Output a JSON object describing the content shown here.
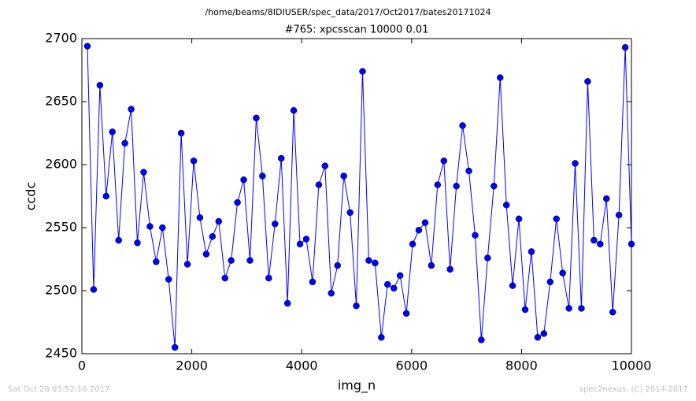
{
  "chart_data": {
    "type": "line",
    "suptitle": "/home/beams/8IDIUSER/spec_data/2017/Oct2017/bates20171024",
    "title": "#765: xpcsscan 10000 0.01",
    "xlabel": "img_n",
    "ylabel": "ccdc",
    "footer_left": "Sat Oct 28 03:52:16 2017",
    "footer_right": "spec2nexus, (C) 2014-2017",
    "xlim": [
      0,
      10000
    ],
    "xticks": [
      0,
      2000,
      4000,
      6000,
      8000,
      10000
    ],
    "ylim": [
      2450,
      2700
    ],
    "yticks": [
      2450,
      2500,
      2550,
      2600,
      2650,
      2700
    ],
    "color": "#0000ff",
    "x": [
      100,
      214,
      328,
      441,
      555,
      669,
      783,
      897,
      1010,
      1124,
      1238,
      1352,
      1466,
      1579,
      1693,
      1807,
      1921,
      2035,
      2148,
      2262,
      2376,
      2490,
      2604,
      2717,
      2831,
      2945,
      3059,
      3173,
      3286,
      3400,
      3514,
      3628,
      3742,
      3855,
      3969,
      4083,
      4197,
      4311,
      4424,
      4538,
      4652,
      4766,
      4880,
      4993,
      5107,
      5221,
      5335,
      5449,
      5562,
      5676,
      5790,
      5904,
      6018,
      6131,
      6245,
      6359,
      6473,
      6587,
      6700,
      6814,
      6928,
      7042,
      7156,
      7269,
      7383,
      7497,
      7611,
      7725,
      7838,
      7952,
      8066,
      8180,
      8294,
      8407,
      8521,
      8635,
      8749,
      8863,
      8976,
      9090,
      9204,
      9318,
      9432,
      9545,
      9659,
      9773,
      9887,
      10000
    ],
    "values": [
      2694,
      2501,
      2663,
      2575,
      2626,
      2540,
      2617,
      2644,
      2538,
      2594,
      2551,
      2523,
      2550,
      2509,
      2455,
      2625,
      2521,
      2603,
      2558,
      2529,
      2543,
      2555,
      2510,
      2524,
      2570,
      2588,
      2524,
      2637,
      2591,
      2510,
      2553,
      2605,
      2490,
      2643,
      2537,
      2541,
      2507,
      2584,
      2599,
      2498,
      2520,
      2591,
      2562,
      2488,
      2674,
      2524,
      2522,
      2463,
      2505,
      2502,
      2512,
      2482,
      2537,
      2548,
      2554,
      2520,
      2584,
      2603,
      2517,
      2583,
      2631,
      2595,
      2544,
      2461,
      2526,
      2583,
      2669,
      2568,
      2504,
      2557,
      2485,
      2531,
      2463,
      2466,
      2507,
      2557,
      2514,
      2486,
      2601,
      2486,
      2666,
      2540,
      2537,
      2573,
      2483,
      2560,
      2693,
      2537
    ]
  }
}
